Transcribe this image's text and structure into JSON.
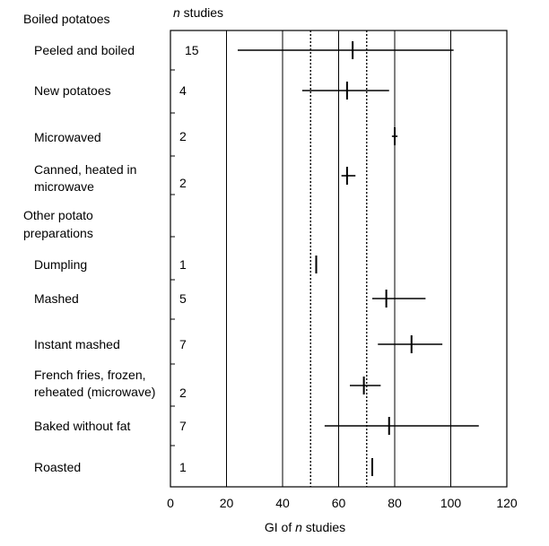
{
  "chart_data": {
    "type": "forest",
    "xlabel_prefix": "GI of",
    "xlabel_n": "n",
    "xlabel_suffix": "studies",
    "column_header_n": "n",
    "column_header_rest": "studies",
    "xlim": [
      0,
      120
    ],
    "xticks": [
      0,
      20,
      40,
      60,
      80,
      100,
      120
    ],
    "reference_lines": [
      50,
      70
    ],
    "groups": [
      {
        "name": "Boiled potatoes",
        "rows": [
          {
            "label": [
              "Peeled and boiled"
            ],
            "n": "15",
            "estimate": 65,
            "low": 24,
            "high": 101
          },
          {
            "label": [
              "New potatoes"
            ],
            "n": "4",
            "estimate": 63,
            "low": 47,
            "high": 78
          },
          {
            "label": [
              "Microwaved"
            ],
            "n": "2",
            "estimate": 80,
            "low": 79,
            "high": 81
          },
          {
            "label": [
              "Canned, heated in",
              "microwave"
            ],
            "n": "2",
            "estimate": 63,
            "low": 61,
            "high": 66
          }
        ]
      },
      {
        "name": [
          "Other potato",
          "preparations"
        ],
        "rows": [
          {
            "label": [
              "Dumpling"
            ],
            "n": "1",
            "estimate": 52,
            "low": 52,
            "high": 52
          },
          {
            "label": [
              "Mashed"
            ],
            "n": "5",
            "estimate": 77,
            "low": 72,
            "high": 91
          },
          {
            "label": [
              "Instant mashed"
            ],
            "n": "7",
            "estimate": 86,
            "low": 74,
            "high": 97
          },
          {
            "label": [
              "French fries, frozen,",
              "reheated (microwave)"
            ],
            "n": "2",
            "estimate": 69,
            "low": 64,
            "high": 75
          },
          {
            "label": [
              "Baked without fat"
            ],
            "n": "7",
            "estimate": 78,
            "low": 55,
            "high": 110
          },
          {
            "label": [
              "Roasted"
            ],
            "n": "1",
            "estimate": 72,
            "low": 72,
            "high": 72
          }
        ]
      }
    ]
  }
}
